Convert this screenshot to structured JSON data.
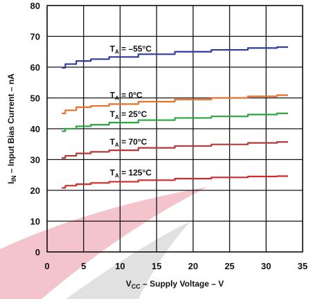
{
  "chart_data": {
    "type": "line",
    "xlabel": {
      "main": "V",
      "sub": "CC",
      "rest": " – Supply Voltage – V"
    },
    "ylabel": {
      "main": "I",
      "sub": "IN",
      "rest": " – Input Bias Current – nA"
    },
    "xlim": [
      0,
      35
    ],
    "ylim": [
      0,
      80
    ],
    "xticks": [
      "0",
      "5",
      "10",
      "15",
      "20",
      "25",
      "30",
      "35"
    ],
    "yticks": [
      "0",
      "10",
      "20",
      "30",
      "40",
      "50",
      "60",
      "70",
      "80"
    ],
    "grid": true,
    "series": [
      {
        "name": "T = –55°C",
        "label_main": "T",
        "label_sub": "A",
        "label_rest": " = –55°C",
        "color": "#2e3a9e",
        "x": [
          2,
          3,
          5,
          7,
          10,
          15,
          20,
          25,
          30,
          33
        ],
        "y": [
          59.8,
          61.0,
          62.0,
          62.6,
          63.3,
          64.2,
          65.0,
          65.6,
          66.2,
          66.5
        ]
      },
      {
        "name": "T = 0°C",
        "label_main": "T",
        "label_sub": "A",
        "label_rest": " = 0°C",
        "color": "#e8702a",
        "x": [
          2,
          3,
          5,
          7,
          10,
          15,
          20,
          25,
          30,
          33
        ],
        "y": [
          45.0,
          46.0,
          47.0,
          47.4,
          48.0,
          48.8,
          49.5,
          50.0,
          50.5,
          50.9
        ]
      },
      {
        "name": "T = 25°C",
        "label_main": "T",
        "label_sub": "A",
        "label_rest": " = 25°C",
        "color": "#2aa43c",
        "x": [
          2,
          3,
          5,
          7,
          10,
          15,
          20,
          25,
          30,
          33
        ],
        "y": [
          39.2,
          40.0,
          40.8,
          41.3,
          42.0,
          42.8,
          43.5,
          44.0,
          44.6,
          45.0
        ]
      },
      {
        "name": "T = 70°C",
        "label_main": "T",
        "label_sub": "A",
        "label_rest": " = 70°C",
        "color": "#b23a3a",
        "x": [
          2,
          3,
          5,
          7,
          10,
          15,
          20,
          25,
          30,
          33
        ],
        "y": [
          30.5,
          31.2,
          32.0,
          32.5,
          33.0,
          33.8,
          34.4,
          34.9,
          35.4,
          35.7
        ]
      },
      {
        "name": "T = 125°C",
        "label_main": "T",
        "label_sub": "A",
        "label_rest": " = 125°C",
        "color": "#d22a2a",
        "x": [
          2,
          3,
          5,
          7,
          10,
          15,
          20,
          25,
          30,
          33
        ],
        "y": [
          20.8,
          21.5,
          22.0,
          22.4,
          22.8,
          23.3,
          23.8,
          24.2,
          24.5,
          24.6
        ]
      }
    ]
  }
}
